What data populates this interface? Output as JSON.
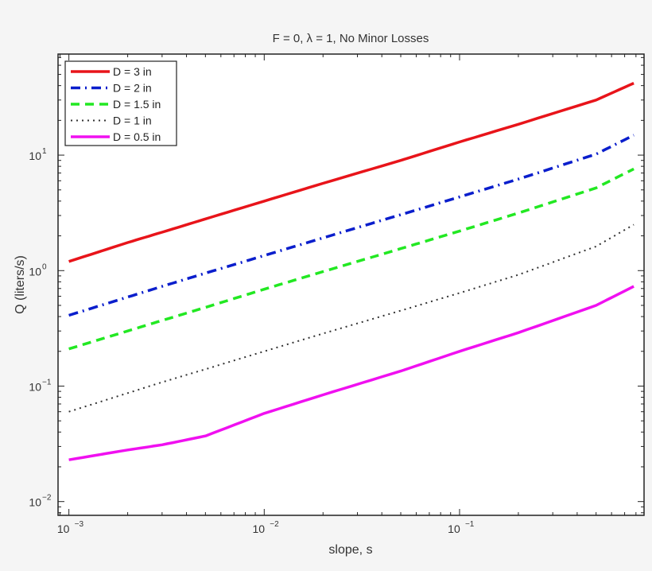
{
  "chart_data": {
    "type": "line",
    "title": "F = 0, λ = 1, No Minor Losses",
    "xlabel": "slope, s",
    "ylabel": "Q (liters/s)",
    "xscale": "log",
    "yscale": "log",
    "xlim": [
      0.00088,
      0.88
    ],
    "ylim": [
      0.0076,
      75
    ],
    "xticks": [
      {
        "base": "10",
        "exp": "−3",
        "value": 0.001
      },
      {
        "base": "10",
        "exp": "−2",
        "value": 0.01
      },
      {
        "base": "10",
        "exp": "−1",
        "value": 0.1
      }
    ],
    "yticks": [
      {
        "base": "10",
        "exp": "1",
        "value": 10
      },
      {
        "base": "10",
        "exp": "0",
        "value": 1
      },
      {
        "base": "10",
        "exp": "−1",
        "value": 0.1
      },
      {
        "base": "10",
        "exp": "−2",
        "value": 0.01
      }
    ],
    "grid": false,
    "legend_position": "upper left",
    "x": [
      0.001,
      0.002,
      0.003,
      0.005,
      0.01,
      0.02,
      0.05,
      0.1,
      0.2,
      0.5,
      0.78
    ],
    "series": [
      {
        "name": "D = 3 in",
        "color": "#e8141a",
        "style": "solid",
        "width": 3.5,
        "values": [
          1.2,
          1.75,
          2.15,
          2.8,
          4.0,
          5.7,
          9.0,
          13.0,
          18.5,
          30.0,
          42.0
        ]
      },
      {
        "name": "D = 2 in",
        "color": "#0a1ecc",
        "style": "dashdot",
        "width": 3.5,
        "values": [
          0.41,
          0.59,
          0.73,
          0.95,
          1.35,
          1.92,
          3.05,
          4.35,
          6.2,
          10.2,
          14.9
        ]
      },
      {
        "name": "D = 1.5 in",
        "color": "#22e822",
        "style": "dashed",
        "width": 3.5,
        "values": [
          0.21,
          0.3,
          0.37,
          0.48,
          0.69,
          0.98,
          1.55,
          2.2,
          3.15,
          5.2,
          7.6
        ]
      },
      {
        "name": "D = 1 in",
        "color": "#333333",
        "style": "dotted",
        "width": 2,
        "values": [
          0.06,
          0.087,
          0.108,
          0.14,
          0.2,
          0.285,
          0.45,
          0.64,
          0.92,
          1.62,
          2.5
        ]
      },
      {
        "name": "D = 0.5 in",
        "color": "#f010f0",
        "style": "solid",
        "width": 3.5,
        "values": [
          0.023,
          0.028,
          0.031,
          0.037,
          0.058,
          0.084,
          0.135,
          0.2,
          0.29,
          0.5,
          0.73
        ]
      }
    ]
  }
}
